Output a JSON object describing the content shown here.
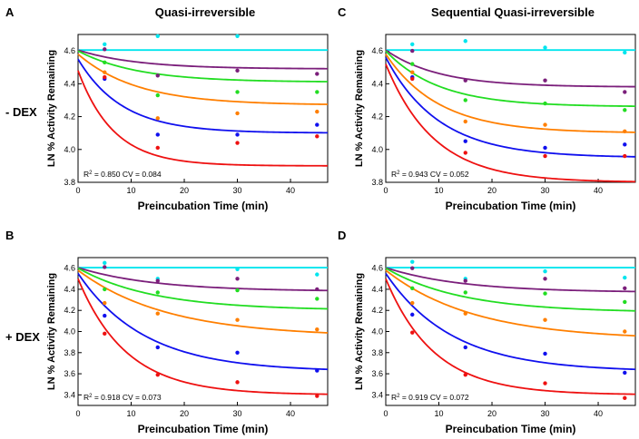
{
  "figure": {
    "column_titles": [
      "Quasi-irreversible",
      "Sequential Quasi-irreversible"
    ],
    "row_labels": [
      "- DEX",
      "+ DEX"
    ],
    "panel_letters": [
      "A",
      "C",
      "B",
      "D"
    ]
  },
  "chart_data": [
    {
      "id": "A",
      "type": "scatter",
      "title": "Quasi-irreversible",
      "xlabel": "Preincubation Time (min)",
      "ylabel": "LN % Activity Remaining",
      "xlim": [
        0,
        47
      ],
      "ylim": [
        3.8,
        4.7
      ],
      "xticks": [
        0,
        10,
        20,
        30,
        40
      ],
      "yticks": [
        3.8,
        4.0,
        4.2,
        4.4,
        4.6
      ],
      "stat_r2": "0.850",
      "stat_cv": "0.084",
      "series": [
        {
          "name": "cyan",
          "color": "#00e5ee",
          "points": [
            [
              5,
              4.64
            ],
            [
              15,
              4.69
            ],
            [
              30,
              4.69
            ]
          ],
          "fit": {
            "y0": 4.605,
            "yinf": 4.605,
            "k": 0.1
          }
        },
        {
          "name": "purple",
          "color": "#7b1f7b",
          "points": [
            [
              5,
              4.61
            ],
            [
              15,
              4.45
            ],
            [
              30,
              4.48
            ],
            [
              45,
              4.46
            ]
          ],
          "fit": {
            "y0": 4.605,
            "yinf": 4.49,
            "k": 0.09
          }
        },
        {
          "name": "green",
          "color": "#22dd22",
          "points": [
            [
              5,
              4.53
            ],
            [
              15,
              4.33
            ],
            [
              30,
              4.35
            ],
            [
              45,
              4.35
            ]
          ],
          "fit": {
            "y0": 4.6,
            "yinf": 4.41,
            "k": 0.09
          }
        },
        {
          "name": "orange",
          "color": "#ff7f00",
          "points": [
            [
              5,
              4.47
            ],
            [
              15,
              4.19
            ],
            [
              30,
              4.22
            ],
            [
              45,
              4.23
            ]
          ],
          "fit": {
            "y0": 4.58,
            "yinf": 4.27,
            "k": 0.09
          }
        },
        {
          "name": "blue",
          "color": "#1010ee",
          "points": [
            [
              5,
              4.43
            ],
            [
              15,
              4.09
            ],
            [
              30,
              4.09
            ],
            [
              45,
              4.15
            ]
          ],
          "fit": {
            "y0": 4.55,
            "yinf": 4.1,
            "k": 0.12
          }
        },
        {
          "name": "red",
          "color": "#ee1111",
          "points": [
            [
              5,
              4.44
            ],
            [
              15,
              4.01
            ],
            [
              30,
              4.04
            ],
            [
              45,
              4.08
            ]
          ],
          "fit": {
            "y0": 4.48,
            "yinf": 3.9,
            "k": 0.15
          }
        }
      ]
    },
    {
      "id": "C",
      "type": "scatter",
      "title": "Sequential Quasi-irreversible",
      "xlabel": "Preincubation Time (min)",
      "ylabel": "LN % Activity Remaining",
      "xlim": [
        0,
        47
      ],
      "ylim": [
        3.8,
        4.7
      ],
      "xticks": [
        0,
        10,
        20,
        30,
        40
      ],
      "yticks": [
        3.8,
        4.0,
        4.2,
        4.4,
        4.6
      ],
      "stat_r2": "0.943",
      "stat_cv": "0.052",
      "series": [
        {
          "name": "cyan",
          "color": "#00e5ee",
          "points": [
            [
              5,
              4.64
            ],
            [
              15,
              4.66
            ],
            [
              30,
              4.62
            ],
            [
              45,
              4.59
            ]
          ],
          "fit": {
            "y0": 4.605,
            "yinf": 4.605,
            "k": 0.1
          }
        },
        {
          "name": "purple",
          "color": "#7b1f7b",
          "points": [
            [
              5,
              4.6
            ],
            [
              15,
              4.42
            ],
            [
              30,
              4.42
            ],
            [
              45,
              4.35
            ]
          ],
          "fit": {
            "y0": 4.605,
            "yinf": 4.38,
            "k": 0.1
          }
        },
        {
          "name": "green",
          "color": "#22dd22",
          "points": [
            [
              5,
              4.52
            ],
            [
              15,
              4.3
            ],
            [
              30,
              4.28
            ],
            [
              45,
              4.24
            ]
          ],
          "fit": {
            "y0": 4.6,
            "yinf": 4.26,
            "k": 0.1
          }
        },
        {
          "name": "orange",
          "color": "#ff7f00",
          "points": [
            [
              5,
              4.47
            ],
            [
              15,
              4.17
            ],
            [
              30,
              4.15
            ],
            [
              45,
              4.11
            ]
          ],
          "fit": {
            "y0": 4.58,
            "yinf": 4.1,
            "k": 0.1
          }
        },
        {
          "name": "blue",
          "color": "#1010ee",
          "points": [
            [
              5,
              4.44
            ],
            [
              15,
              4.05
            ],
            [
              30,
              4.01
            ],
            [
              45,
              4.03
            ]
          ],
          "fit": {
            "y0": 4.56,
            "yinf": 3.95,
            "k": 0.1
          }
        },
        {
          "name": "red",
          "color": "#ee1111",
          "points": [
            [
              5,
              4.43
            ],
            [
              15,
              3.98
            ],
            [
              30,
              3.96
            ],
            [
              45,
              3.96
            ]
          ],
          "fit": {
            "y0": 4.52,
            "yinf": 3.8,
            "k": 0.11
          }
        }
      ]
    },
    {
      "id": "B",
      "type": "scatter",
      "title": "",
      "xlabel": "Preincubation Time (min)",
      "ylabel": "LN % Activity Remaining",
      "xlim": [
        0,
        47
      ],
      "ylim": [
        3.3,
        4.7
      ],
      "xticks": [
        0,
        10,
        20,
        30,
        40
      ],
      "yticks": [
        3.4,
        3.6,
        3.8,
        4.0,
        4.2,
        4.4,
        4.6
      ],
      "stat_r2": "0.918",
      "stat_cv": "0.073",
      "series": [
        {
          "name": "cyan",
          "color": "#00e5ee",
          "points": [
            [
              5,
              4.65
            ],
            [
              15,
              4.5
            ],
            [
              30,
              4.59
            ],
            [
              45,
              4.54
            ]
          ],
          "fit": {
            "y0": 4.605,
            "yinf": 4.605,
            "k": 0.1
          }
        },
        {
          "name": "purple",
          "color": "#7b1f7b",
          "points": [
            [
              5,
              4.61
            ],
            [
              15,
              4.48
            ],
            [
              30,
              4.5
            ],
            [
              45,
              4.4
            ]
          ],
          "fit": {
            "y0": 4.605,
            "yinf": 4.38,
            "k": 0.07
          }
        },
        {
          "name": "green",
          "color": "#22dd22",
          "points": [
            [
              5,
              4.4
            ],
            [
              15,
              4.37
            ],
            [
              30,
              4.39
            ],
            [
              45,
              4.31
            ]
          ],
          "fit": {
            "y0": 4.6,
            "yinf": 4.2,
            "k": 0.07
          }
        },
        {
          "name": "orange",
          "color": "#ff7f00",
          "points": [
            [
              5,
              4.27
            ],
            [
              15,
              4.17
            ],
            [
              30,
              4.11
            ],
            [
              45,
              4.02
            ]
          ],
          "fit": {
            "y0": 4.58,
            "yinf": 3.95,
            "k": 0.06
          }
        },
        {
          "name": "blue",
          "color": "#1010ee",
          "points": [
            [
              5,
              4.15
            ],
            [
              15,
              3.85
            ],
            [
              30,
              3.8
            ],
            [
              45,
              3.63
            ]
          ],
          "fit": {
            "y0": 4.55,
            "yinf": 3.62,
            "k": 0.08
          }
        },
        {
          "name": "red",
          "color": "#ee1111",
          "points": [
            [
              5,
              3.98
            ],
            [
              15,
              3.59
            ],
            [
              30,
              3.52
            ],
            [
              45,
              3.39
            ]
          ],
          "fit": {
            "y0": 4.5,
            "yinf": 3.4,
            "k": 0.11
          }
        }
      ]
    },
    {
      "id": "D",
      "type": "scatter",
      "title": "",
      "xlabel": "Preincubation Time (min)",
      "ylabel": "LN % Activity Remaining",
      "xlim": [
        0,
        47
      ],
      "ylim": [
        3.3,
        4.7
      ],
      "xticks": [
        0,
        10,
        20,
        30,
        40
      ],
      "yticks": [
        3.4,
        3.6,
        3.8,
        4.0,
        4.2,
        4.4,
        4.6
      ],
      "stat_r2": "0.919",
      "stat_cv": "0.072",
      "series": [
        {
          "name": "cyan",
          "color": "#00e5ee",
          "points": [
            [
              5,
              4.66
            ],
            [
              15,
              4.5
            ],
            [
              30,
              4.57
            ],
            [
              45,
              4.51
            ]
          ],
          "fit": {
            "y0": 4.605,
            "yinf": 4.605,
            "k": 0.1
          }
        },
        {
          "name": "purple",
          "color": "#7b1f7b",
          "points": [
            [
              5,
              4.6
            ],
            [
              15,
              4.48
            ],
            [
              30,
              4.5
            ],
            [
              45,
              4.41
            ]
          ],
          "fit": {
            "y0": 4.605,
            "yinf": 4.37,
            "k": 0.07
          }
        },
        {
          "name": "green",
          "color": "#22dd22",
          "points": [
            [
              5,
              4.41
            ],
            [
              15,
              4.37
            ],
            [
              30,
              4.36
            ],
            [
              45,
              4.28
            ]
          ],
          "fit": {
            "y0": 4.6,
            "yinf": 4.18,
            "k": 0.07
          }
        },
        {
          "name": "orange",
          "color": "#ff7f00",
          "points": [
            [
              5,
              4.27
            ],
            [
              15,
              4.17
            ],
            [
              30,
              4.11
            ],
            [
              45,
              4.0
            ]
          ],
          "fit": {
            "y0": 4.58,
            "yinf": 3.92,
            "k": 0.06
          }
        },
        {
          "name": "blue",
          "color": "#1010ee",
          "points": [
            [
              5,
              4.16
            ],
            [
              15,
              3.85
            ],
            [
              30,
              3.79
            ],
            [
              45,
              3.61
            ]
          ],
          "fit": {
            "y0": 4.55,
            "yinf": 3.62,
            "k": 0.08
          }
        },
        {
          "name": "red",
          "color": "#ee1111",
          "points": [
            [
              5,
              3.99
            ],
            [
              15,
              3.59
            ],
            [
              30,
              3.51
            ],
            [
              45,
              3.37
            ]
          ],
          "fit": {
            "y0": 4.5,
            "yinf": 3.4,
            "k": 0.11
          }
        }
      ]
    }
  ]
}
